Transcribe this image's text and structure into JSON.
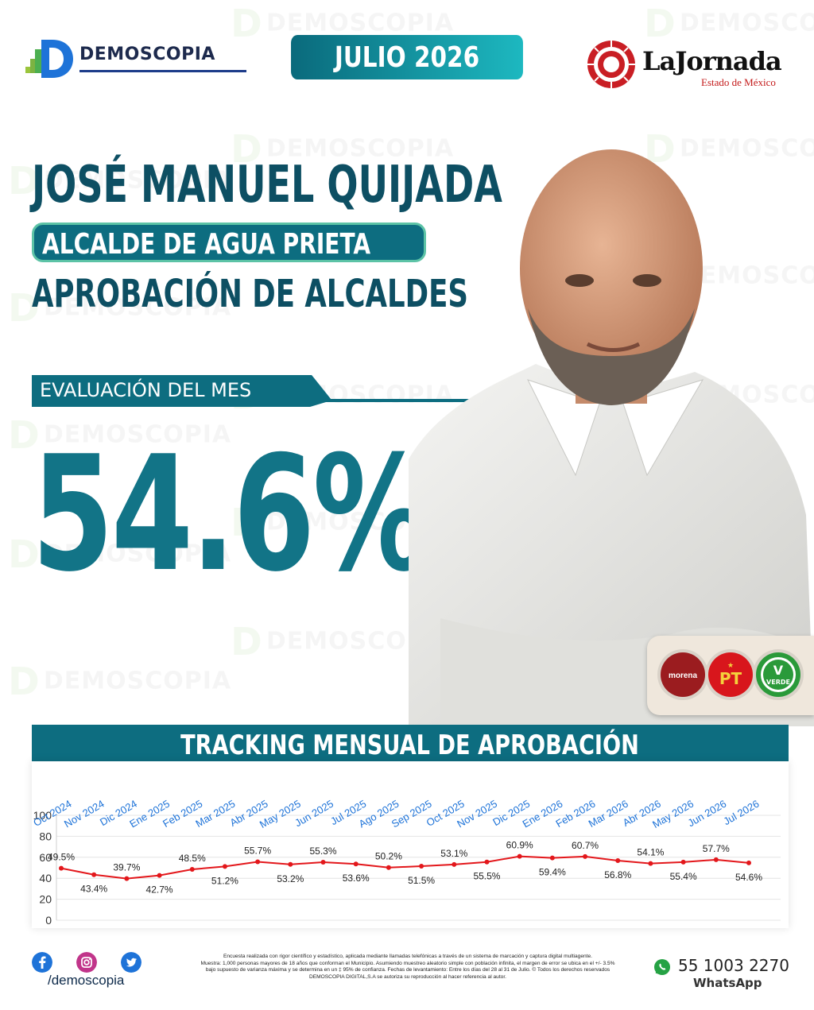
{
  "header": {
    "brand": "DEMOSCOPIA",
    "month_banner": "JULIO 2026",
    "partner_logo": "LaJornada",
    "partner_sub": "Estado de México"
  },
  "hero": {
    "name": "JOSÉ MANUEL QUIJADA",
    "role": "ALCALDE DE AGUA PRIETA",
    "subtitle": "APROBACIÓN DE ALCALDES",
    "eval_label": "EVALUACIÓN DEL MES",
    "value": "54.6%"
  },
  "parties": [
    {
      "label": "morena",
      "color": "#9b1c1f"
    },
    {
      "label": "PT",
      "color": "#d8161c"
    },
    {
      "label": "VERDE",
      "color": "#2a9a3a"
    }
  ],
  "tracking_title": "TRACKING MENSUAL DE APROBACIÓN",
  "chart_data": {
    "type": "line",
    "categories": [
      "Oct 2024",
      "Nov 2024",
      "Dic 2024",
      "Ene 2025",
      "Feb 2025",
      "Mar 2025",
      "Abr 2025",
      "May 2025",
      "Jun 2025",
      "Jul 2025",
      "Ago 2025",
      "Sep 2025",
      "Oct 2025",
      "Nov 2025",
      "Dic 2025",
      "Ene 2026",
      "Feb 2026",
      "Mar 2026",
      "Abr 2026",
      "May 2026",
      "Jun 2026",
      "Jul 2026"
    ],
    "series": [
      {
        "values": [
          49.5,
          43.4,
          39.7,
          42.7,
          48.5,
          51.2,
          55.7,
          53.2,
          55.3,
          53.6,
          50.2,
          51.5,
          53.1,
          55.5,
          60.9,
          59.4,
          60.7,
          56.8,
          54.1,
          55.4,
          57.7,
          54.6
        ]
      }
    ],
    "data_labels": [
      "49.5%",
      "43.4%",
      "39.7%",
      "42.7%",
      "48.5%",
      "51.2%",
      "55.7%",
      "53.2%",
      "55.3%",
      "53.6%",
      "50.2%",
      "51.5%",
      "53.1%",
      "55.5%",
      "60.9%",
      "59.4%",
      "60.7%",
      "56.8%",
      "54.1%",
      "55.4%",
      "57.7%",
      "54.6%"
    ],
    "yticks": [
      "0",
      "20",
      "40",
      "60",
      "80",
      "100"
    ],
    "ylim": [
      0,
      100
    ],
    "line_color": "#e3171b",
    "category_color": "#1e73d8",
    "grid": "y",
    "title": "",
    "xlabel": "",
    "ylabel": ""
  },
  "footer": {
    "handle": "/demoscopia",
    "disclaimer_1": "Encuesta realizada con rigor científico y estadístico, aplicada mediante llamadas telefónicas a través de un sistema de marcación y captura digital multiagente.",
    "disclaimer_2": "Muestra: 1,000 personas mayores de 18 años que conforman el Municipio. Asumiendo muestreo aleatorio simple con población infinita, el margen de error se ubica en el +/- 3.5%",
    "disclaimer_3": "bajo supuesto de varianza máxima y se determina en un ‡ 95% de confianza. Fechas de levantamiento: Entre los días del 28 al 31 de Julio. © Todos los derechos reservados",
    "disclaimer_4": "DEMOSCOPIA DIGITAL,S.A se autoriza su reproducción al hacer referencia al autor.",
    "phone": "55 1003 2270",
    "whatsapp": "WhatsApp"
  },
  "colors": {
    "teal_dark": "#0d4f63",
    "teal": "#0d6d80",
    "accent": "#1db8c0",
    "green": "#5cc3a6"
  }
}
